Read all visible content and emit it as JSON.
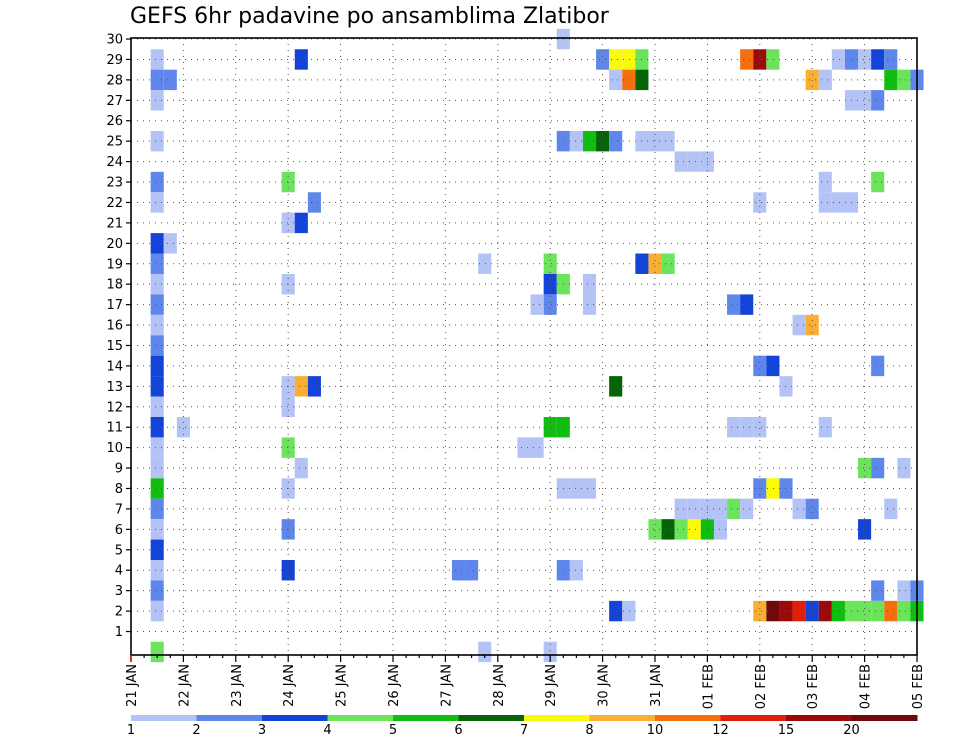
{
  "chart_data": {
    "type": "heatmap",
    "title": "GEFS 6hr padavine po ansamblima Zlatibor",
    "xlabel": "",
    "ylabel": "",
    "x_ticks": [
      "21 JAN",
      "22 JAN",
      "23 JAN",
      "24 JAN",
      "25 JAN",
      "26 JAN",
      "27 JAN",
      "28 JAN",
      "29 JAN",
      "30 JAN",
      "31 JAN",
      "01 FEB",
      "02 FEB",
      "03 FEB",
      "04 FEB",
      "05 FEB"
    ],
    "y_ticks": [
      "1",
      "2",
      "3",
      "4",
      "5",
      "6",
      "7",
      "8",
      "9",
      "10",
      "11",
      "12",
      "13",
      "14",
      "15",
      "16",
      "17",
      "18",
      "19",
      "20",
      "21",
      "22",
      "23",
      "24",
      "25",
      "26",
      "27",
      "28",
      "29",
      "30"
    ],
    "x_range": [
      0,
      60
    ],
    "y_range": [
      0,
      30
    ],
    "grid": true,
    "legend": {
      "labels": [
        "1",
        "2",
        "3",
        "4",
        "5",
        "6",
        "7",
        "8",
        "10",
        "12",
        "15",
        "20"
      ],
      "colors": [
        "#b4c3f5",
        "#5f87eb",
        "#1443d7",
        "#6be35a",
        "#11bd11",
        "#056405",
        "#fafa0a",
        "#faae32",
        "#f56f0f",
        "#e11e0a",
        "#9b0a0a",
        "#6e0a0a"
      ]
    },
    "cells": [
      [
        2,
        29,
        0
      ],
      [
        2,
        28,
        1
      ],
      [
        3,
        28,
        1
      ],
      [
        2,
        27,
        0
      ],
      [
        2,
        25,
        0
      ],
      [
        2,
        23,
        1
      ],
      [
        2,
        22,
        0
      ],
      [
        2,
        20,
        2
      ],
      [
        3,
        20,
        0
      ],
      [
        2,
        19,
        1
      ],
      [
        2,
        18,
        0
      ],
      [
        2,
        17,
        1
      ],
      [
        2,
        16,
        0
      ],
      [
        2,
        15,
        1
      ],
      [
        2,
        14,
        2
      ],
      [
        2,
        13,
        2
      ],
      [
        2,
        12,
        0
      ],
      [
        2,
        11,
        2
      ],
      [
        2,
        10,
        0
      ],
      [
        2,
        9,
        0
      ],
      [
        2,
        8,
        4
      ],
      [
        2,
        7,
        1
      ],
      [
        2,
        6,
        0
      ],
      [
        2,
        5,
        2
      ],
      [
        2,
        4,
        0
      ],
      [
        2,
        3,
        1
      ],
      [
        2,
        2,
        0
      ],
      [
        2,
        0,
        3
      ],
      [
        4,
        11,
        0
      ],
      [
        12,
        23,
        3
      ],
      [
        12,
        21,
        0
      ],
      [
        12,
        18,
        0
      ],
      [
        12,
        13,
        0
      ],
      [
        12,
        12,
        0
      ],
      [
        12,
        10,
        3
      ],
      [
        12,
        8,
        0
      ],
      [
        12,
        6,
        1
      ],
      [
        12,
        4,
        2
      ],
      [
        13,
        29,
        2
      ],
      [
        13,
        21,
        2
      ],
      [
        13,
        13,
        7
      ],
      [
        13,
        9,
        0
      ],
      [
        14,
        22,
        1
      ],
      [
        14,
        13,
        2
      ],
      [
        25,
        4,
        1
      ],
      [
        26,
        4,
        1
      ],
      [
        27,
        19,
        0
      ],
      [
        27,
        0,
        0
      ],
      [
        30,
        10,
        0
      ],
      [
        31,
        10,
        0
      ],
      [
        32,
        19,
        3
      ],
      [
        32,
        18,
        2
      ],
      [
        32,
        17,
        1
      ],
      [
        32,
        11,
        4
      ],
      [
        32,
        0,
        0
      ],
      [
        31,
        17,
        0
      ],
      [
        33,
        18,
        3
      ],
      [
        33,
        11,
        4
      ],
      [
        33,
        8,
        0
      ],
      [
        34,
        8,
        0
      ],
      [
        35,
        8,
        0
      ],
      [
        33,
        25,
        1
      ],
      [
        34,
        25,
        0
      ],
      [
        35,
        25,
        4
      ],
      [
        36,
        25,
        5
      ],
      [
        37,
        25,
        1
      ],
      [
        33,
        4,
        1
      ],
      [
        34,
        4,
        0
      ],
      [
        33,
        30,
        0
      ],
      [
        35,
        18,
        0
      ],
      [
        35,
        17,
        0
      ],
      [
        36,
        29,
        1
      ],
      [
        37,
        29,
        6
      ],
      [
        38,
        29,
        6
      ],
      [
        39,
        29,
        3
      ],
      [
        37,
        28,
        0
      ],
      [
        38,
        28,
        8
      ],
      [
        39,
        28,
        5
      ],
      [
        37,
        13,
        5
      ],
      [
        37,
        2,
        2
      ],
      [
        38,
        2,
        0
      ],
      [
        39,
        25,
        0
      ],
      [
        40,
        25,
        0
      ],
      [
        41,
        25,
        0
      ],
      [
        39,
        19,
        2
      ],
      [
        40,
        19,
        7
      ],
      [
        41,
        19,
        3
      ],
      [
        40,
        6,
        3
      ],
      [
        41,
        6,
        5
      ],
      [
        42,
        6,
        3
      ],
      [
        43,
        6,
        6
      ],
      [
        44,
        6,
        4
      ],
      [
        45,
        6,
        0
      ],
      [
        42,
        7,
        0
      ],
      [
        43,
        7,
        0
      ],
      [
        44,
        7,
        0
      ],
      [
        45,
        7,
        0
      ],
      [
        42,
        24,
        0
      ],
      [
        43,
        24,
        0
      ],
      [
        44,
        24,
        0
      ],
      [
        46,
        7,
        3
      ],
      [
        47,
        7,
        0
      ],
      [
        46,
        17,
        1
      ],
      [
        47,
        17,
        2
      ],
      [
        46,
        11,
        0
      ],
      [
        47,
        11,
        0
      ],
      [
        48,
        11,
        0
      ],
      [
        47,
        29,
        8
      ],
      [
        48,
        29,
        10
      ],
      [
        49,
        29,
        3
      ],
      [
        48,
        22,
        0
      ],
      [
        48,
        14,
        1
      ],
      [
        49,
        14,
        2
      ],
      [
        48,
        8,
        1
      ],
      [
        49,
        8,
        6
      ],
      [
        50,
        8,
        1
      ],
      [
        48,
        2,
        7
      ],
      [
        49,
        2,
        11
      ],
      [
        50,
        2,
        10
      ],
      [
        51,
        2,
        9
      ],
      [
        52,
        2,
        2
      ],
      [
        53,
        2,
        10
      ],
      [
        54,
        2,
        4
      ],
      [
        55,
        2,
        3
      ],
      [
        56,
        2,
        3
      ],
      [
        57,
        2,
        3
      ],
      [
        58,
        2,
        8
      ],
      [
        59,
        2,
        3
      ],
      [
        60,
        2,
        4
      ],
      [
        50,
        13,
        0
      ],
      [
        51,
        16,
        0
      ],
      [
        52,
        16,
        7
      ],
      [
        51,
        7,
        0
      ],
      [
        52,
        7,
        1
      ],
      [
        52,
        28,
        7
      ],
      [
        53,
        28,
        0
      ],
      [
        53,
        23,
        0
      ],
      [
        53,
        22,
        0
      ],
      [
        54,
        22,
        0
      ],
      [
        55,
        22,
        0
      ],
      [
        53,
        11,
        0
      ],
      [
        54,
        29,
        0
      ],
      [
        55,
        29,
        1
      ],
      [
        56,
        29,
        0
      ],
      [
        57,
        29,
        2
      ],
      [
        58,
        29,
        1
      ],
      [
        55,
        27,
        0
      ],
      [
        56,
        27,
        0
      ],
      [
        57,
        27,
        1
      ],
      [
        56,
        9,
        3
      ],
      [
        57,
        9,
        1
      ],
      [
        56,
        6,
        2
      ],
      [
        57,
        23,
        3
      ],
      [
        57,
        14,
        1
      ],
      [
        57,
        3,
        1
      ],
      [
        58,
        28,
        4
      ],
      [
        59,
        28,
        3
      ],
      [
        60,
        28,
        1
      ],
      [
        58,
        7,
        0
      ],
      [
        59,
        9,
        0
      ],
      [
        59,
        3,
        0
      ],
      [
        60,
        3,
        1
      ]
    ]
  }
}
